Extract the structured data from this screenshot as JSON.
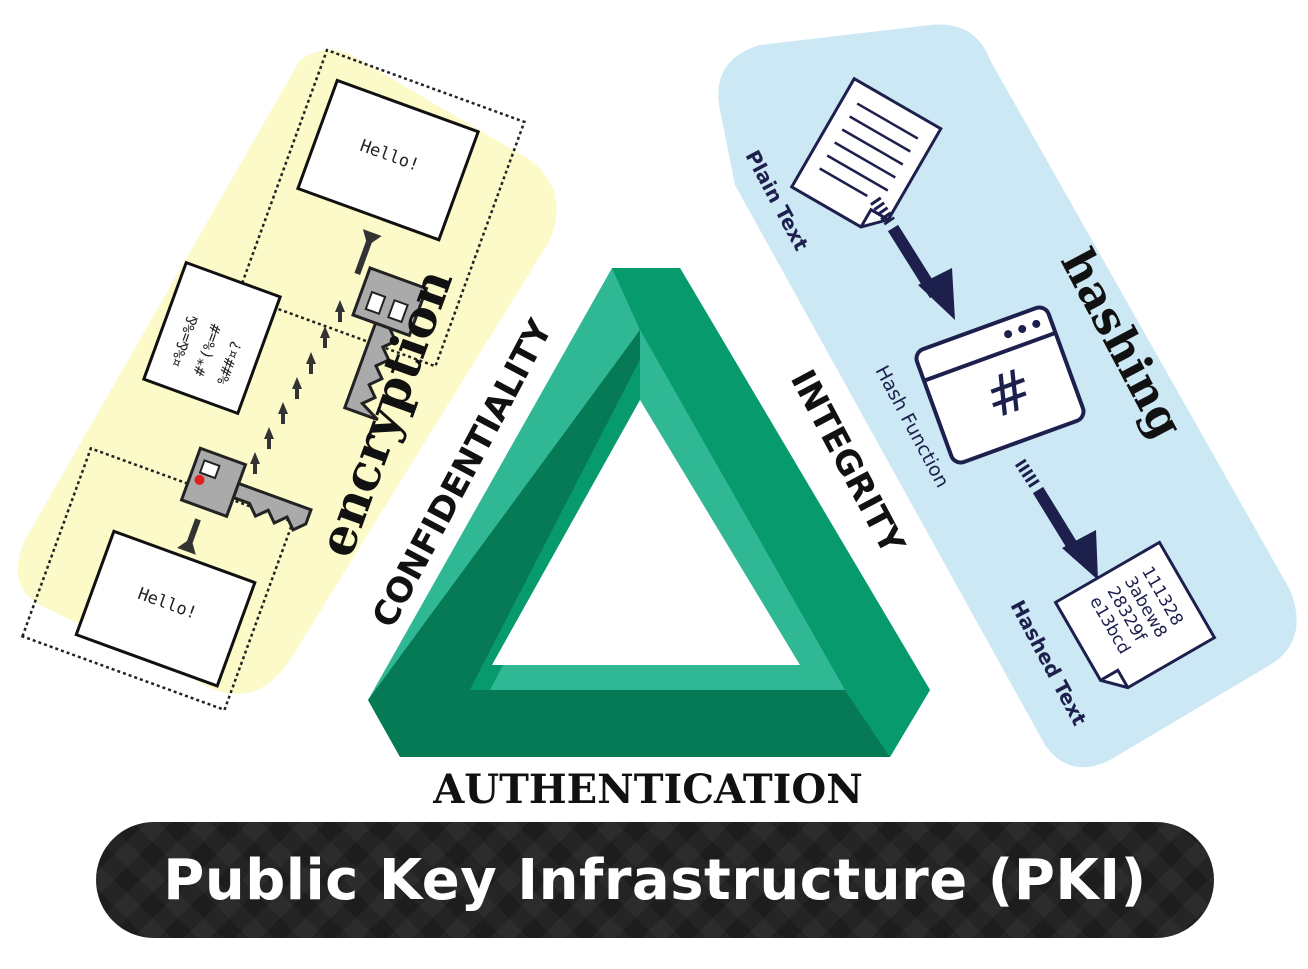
{
  "title": "Public Key Infrastructure (PKI)",
  "pillars": {
    "confidentiality": "CONFIDENTIALITY",
    "integrity": "INTEGRITY",
    "authentication": "AUTHENTICATION"
  },
  "encryption": {
    "label": "encryption",
    "plain_doc_1": "Hello!",
    "plain_doc_2": "Hello!",
    "cipher_lines": [
      "¤%&=%&",
      "#*(%=#",
      "%##¤?"
    ]
  },
  "hashing": {
    "label": "hashing",
    "plain_text_label": "Plain Text",
    "hash_function_label": "Hash Function",
    "hashed_text_label": "Hashed Text",
    "hash_symbol": "#",
    "hashed_lines": [
      "111328",
      "3abew8",
      "28329f",
      "e13bcd"
    ]
  },
  "colors": {
    "encryption_panel": "#fbfac8",
    "hashing_panel": "#cce8f4",
    "triangle_light": "#2fb893",
    "triangle_mid": "#079a6c",
    "triangle_dark": "#067a55",
    "hash_ink": "#1d1f4d",
    "title_bar": "#1d1d1d"
  }
}
